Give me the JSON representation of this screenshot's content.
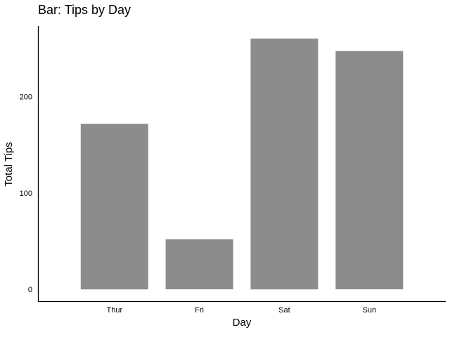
{
  "chart_data": {
    "type": "bar",
    "title": "Bar: Tips by Day",
    "xlabel": "Day",
    "ylabel": "Total Tips",
    "categories": [
      "Thur",
      "Fri",
      "Sat",
      "Sun"
    ],
    "values": [
      171.83,
      51.96,
      260.4,
      247.39
    ],
    "ylim": [
      -13.02,
      273.42
    ],
    "yticks": [
      0,
      100,
      200
    ],
    "ytick_labels": [
      "0",
      "100",
      "200"
    ],
    "grid": false,
    "legend": "none",
    "bar_color": "#8c8c8c",
    "axis_color": "#000000"
  }
}
